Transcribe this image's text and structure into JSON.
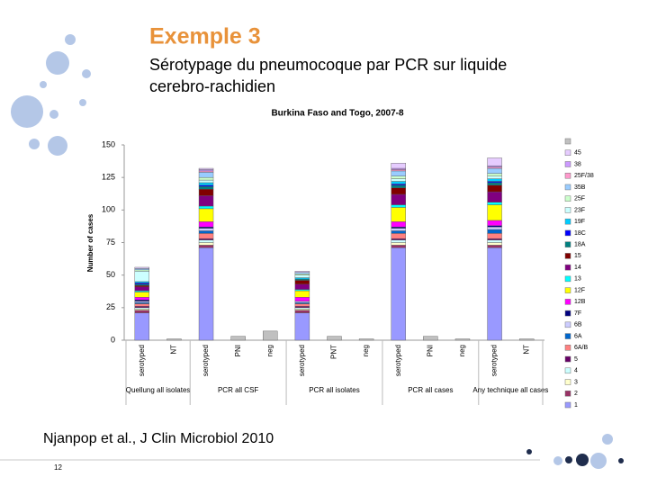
{
  "slide": {
    "title": "Exemple 3",
    "subtitle": "Sérotypage du pneumocoque par PCR sur liquide cerebro-rachidien",
    "citation": "Njanpop et al., J Clin Microbiol 2010",
    "page_number": "12"
  },
  "chart_data": {
    "type": "stacked_bar",
    "title": "Burkina Faso and Togo, 2007-8",
    "y_label": "Number of cases",
    "categories": [
      "serotyped",
      "NT",
      "serotyped",
      "PNI",
      "neg",
      "serotyped",
      "PNT",
      "neg",
      "serotyped",
      "PNI",
      "neg",
      "serotyped",
      "NT"
    ],
    "groups": [
      "Quellung all isolates",
      "PCR all CSF",
      "PCR all isolates",
      "PCR all cases",
      "Any technique all cases"
    ],
    "ylim": [
      0,
      150
    ],
    "yticks": [
      0,
      25,
      50,
      75,
      100,
      125,
      150
    ],
    "series": [
      {
        "name": "1",
        "color": "#9999ff",
        "values": [
          21,
          0,
          71,
          0,
          0,
          21,
          0,
          0,
          71,
          0,
          0,
          71,
          0
        ]
      },
      {
        "name": "2",
        "color": "#993366",
        "values": [
          2,
          0,
          2,
          0,
          0,
          2,
          0,
          0,
          2,
          0,
          0,
          2,
          0
        ]
      },
      {
        "name": "3",
        "color": "#ffffcc",
        "values": [
          1,
          0,
          2,
          0,
          0,
          1,
          0,
          0,
          2,
          0,
          0,
          2,
          0
        ]
      },
      {
        "name": "4",
        "color": "#ccffff",
        "values": [
          1,
          0,
          2,
          0,
          0,
          1,
          0,
          0,
          2,
          0,
          0,
          2,
          0
        ]
      },
      {
        "name": "5",
        "color": "#660066",
        "values": [
          1,
          0,
          1,
          0,
          0,
          1,
          0,
          0,
          1,
          0,
          0,
          1,
          0
        ]
      },
      {
        "name": "6A/B",
        "color": "#ff8080",
        "values": [
          2,
          0,
          4,
          0,
          0,
          2,
          0,
          0,
          4,
          0,
          0,
          4,
          0
        ]
      },
      {
        "name": "6A",
        "color": "#0066cc",
        "values": [
          1,
          0,
          2,
          0,
          0,
          1,
          0,
          0,
          2,
          0,
          0,
          3,
          0
        ]
      },
      {
        "name": "6B",
        "color": "#ccccff",
        "values": [
          1,
          0,
          2,
          0,
          0,
          1,
          0,
          0,
          2,
          0,
          0,
          2,
          0
        ]
      },
      {
        "name": "7F",
        "color": "#000080",
        "values": [
          1,
          0,
          1,
          0,
          0,
          0,
          0,
          0,
          1,
          0,
          0,
          1,
          0
        ]
      },
      {
        "name": "12B",
        "color": "#ff00ff",
        "values": [
          2,
          0,
          4,
          0,
          0,
          3,
          0,
          0,
          4,
          0,
          0,
          4,
          0
        ]
      },
      {
        "name": "12F",
        "color": "#ffff00",
        "values": [
          4,
          0,
          10,
          0,
          0,
          5,
          0,
          0,
          11,
          0,
          0,
          12,
          0
        ]
      },
      {
        "name": "13",
        "color": "#00ffff",
        "values": [
          1,
          0,
          2,
          0,
          0,
          1,
          0,
          0,
          2,
          0,
          0,
          2,
          0
        ]
      },
      {
        "name": "14",
        "color": "#800080",
        "values": [
          3,
          0,
          8,
          0,
          0,
          4,
          0,
          0,
          8,
          0,
          0,
          8,
          0
        ]
      },
      {
        "name": "15",
        "color": "#800000",
        "values": [
          1,
          0,
          5,
          0,
          0,
          3,
          0,
          0,
          5,
          0,
          0,
          5,
          0
        ]
      },
      {
        "name": "18A",
        "color": "#008080",
        "values": [
          1,
          0,
          2,
          0,
          0,
          1,
          0,
          0,
          2,
          0,
          0,
          2,
          0
        ]
      },
      {
        "name": "18C",
        "color": "#0000ff",
        "values": [
          1,
          0,
          1,
          0,
          0,
          0,
          0,
          0,
          1,
          0,
          0,
          1,
          0
        ]
      },
      {
        "name": "19F",
        "color": "#00ccff",
        "values": [
          1,
          0,
          2,
          0,
          0,
          1,
          0,
          0,
          2,
          0,
          0,
          2,
          0
        ]
      },
      {
        "name": "23F",
        "color": "#ccffff",
        "values": [
          8,
          0,
          2,
          0,
          0,
          2,
          0,
          0,
          2,
          0,
          0,
          2,
          0
        ]
      },
      {
        "name": "25F",
        "color": "#ccffcc",
        "values": [
          1,
          0,
          2,
          0,
          0,
          1,
          0,
          0,
          2,
          0,
          0,
          2,
          0
        ]
      },
      {
        "name": "35B",
        "color": "#99ccff",
        "values": [
          1,
          0,
          4,
          0,
          0,
          1,
          0,
          0,
          4,
          0,
          0,
          4,
          0
        ]
      },
      {
        "name": "25F/38",
        "color": "#ff99cc",
        "values": [
          0,
          0,
          1,
          0,
          0,
          0,
          0,
          0,
          1,
          0,
          0,
          1,
          0
        ]
      },
      {
        "name": "38",
        "color": "#cc99ff",
        "values": [
          0,
          0,
          1,
          0,
          0,
          0,
          0,
          0,
          1,
          0,
          0,
          1,
          0
        ]
      },
      {
        "name": "45",
        "color": "#e6ccff",
        "values": [
          1,
          0,
          1,
          0,
          0,
          1,
          0,
          0,
          4,
          0,
          0,
          6,
          0
        ]
      },
      {
        "color": "#c0c0c0",
        "values": [
          0,
          1,
          0,
          3,
          7,
          0,
          3,
          1,
          0,
          3,
          1,
          0,
          1
        ]
      }
    ]
  }
}
